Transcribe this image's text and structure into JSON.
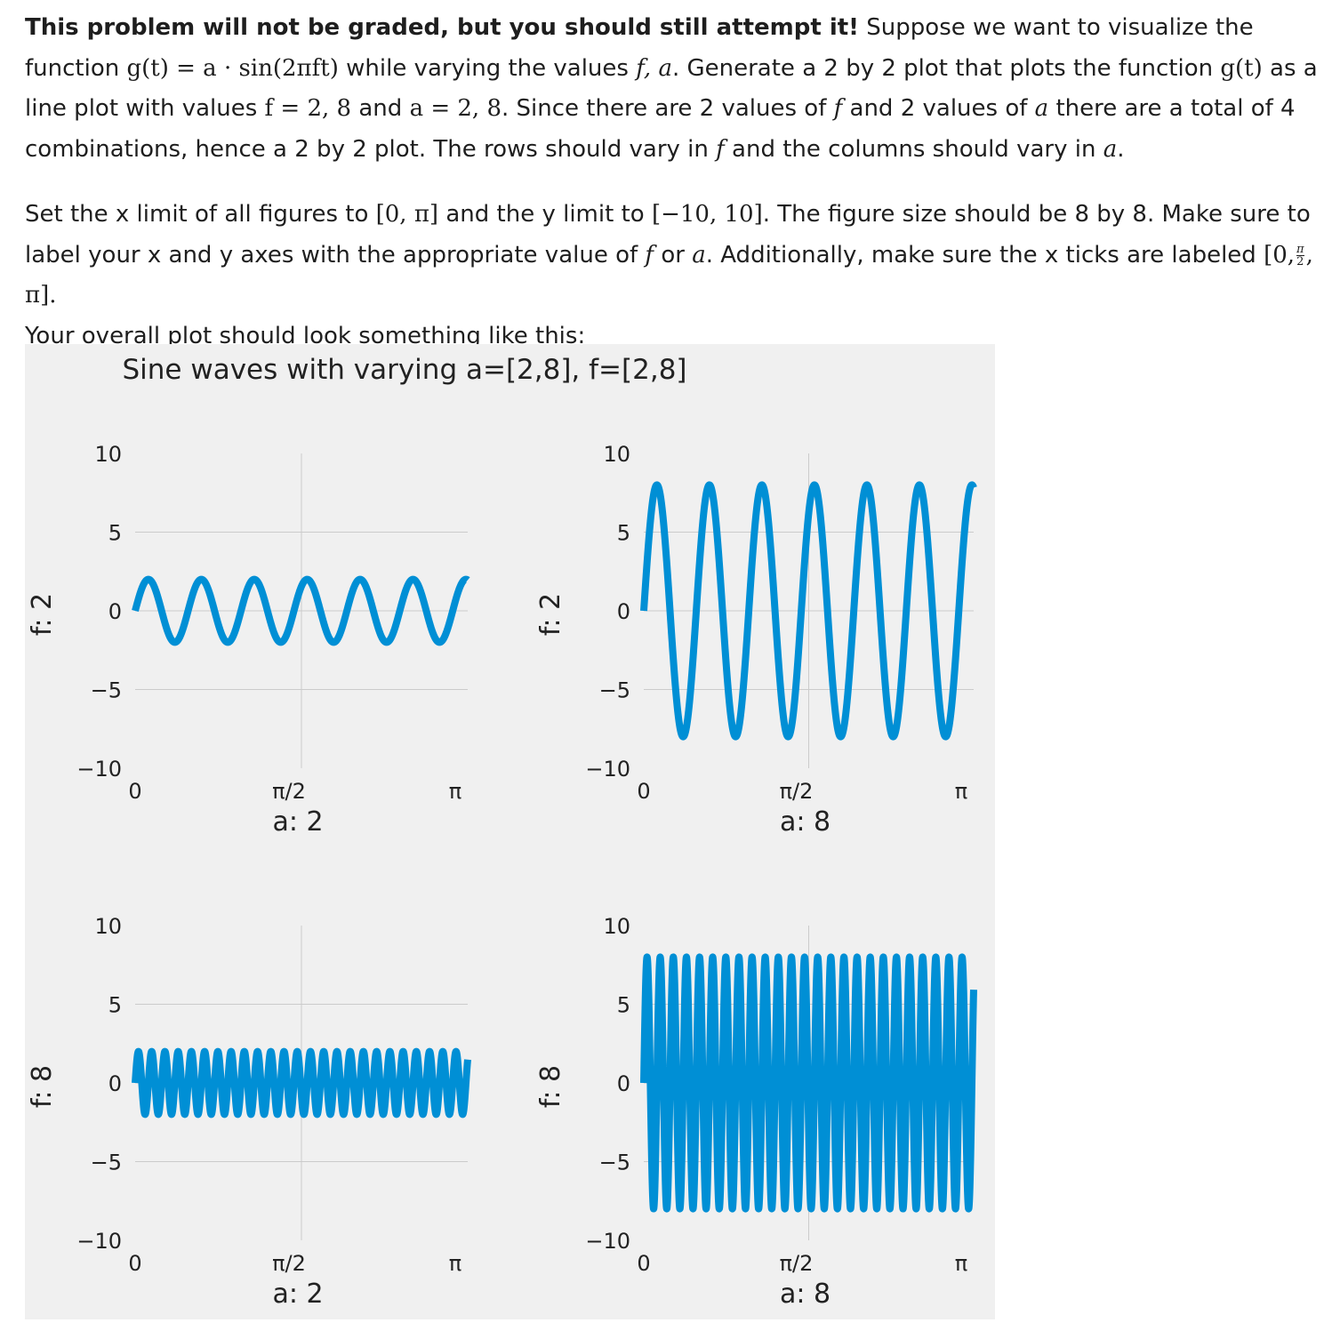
{
  "problem": {
    "bold_lead": "This problem will not be graded, but you should still attempt it!",
    "s1a": "Suppose we want to visualize the function",
    "func": "g(t) = a · sin(2πft)",
    "s1b": "while varying the values",
    "vars": "f, a",
    "s1c": ". Generate a 2 by 2 plot that plots the function",
    "g_t": "g(t)",
    "s1d": "as a line plot with values",
    "f_vals": "f = 2, 8",
    "and1": "and",
    "a_vals": "a = 2, 8",
    "s1e": ". Since there are 2 values of",
    "f1": "f",
    "s1f": "and 2 values of",
    "a1": "a",
    "s1g": "there are a total of 4 combinations, hence a 2 by 2 plot. The rows should vary in",
    "f2": "f",
    "s1h": "and the columns should vary in",
    "a2": "a",
    "s1i": ".",
    "s2a": "Set the x limit of all figures to",
    "xlim_text": "[0, π]",
    "s2b": "and the y limit to",
    "ylim_text": "[−10, 10]",
    "s2c": ". The figure size should be 8 by 8. Make sure to label your x and y axes with the appropriate value of",
    "f3": "f",
    "or": "or",
    "a3": "a",
    "s2d": ". Additionally, make sure the x ticks are labeled",
    "tick_open": "[0,",
    "frac_num": "π",
    "frac_den": "2",
    "tick_close": ", π].",
    "s2e": "Your overall plot should look something like this:"
  },
  "chart_data": {
    "type": "line",
    "title": "Sine waves with varying a=[2,8], f=[2,8]",
    "function": "g(t) = a * sin(2*pi*f*t)",
    "xlim": [
      0,
      3.14159
    ],
    "ylim": [
      -10,
      10
    ],
    "xticks": [
      0,
      1.5708,
      3.14159
    ],
    "xtick_labels": [
      "0",
      "π/2",
      "π"
    ],
    "yticks": [
      -10,
      -5,
      0,
      5,
      10
    ],
    "ytick_labels": [
      "−10",
      "−5",
      "0",
      "5",
      "10"
    ],
    "grid": true,
    "line_color": "#008fd5",
    "background_color": "#f0f0f0",
    "subplots": [
      {
        "f": 2,
        "a": 2,
        "xlabel": "a: 2",
        "ylabel": "f: 2"
      },
      {
        "f": 2,
        "a": 8,
        "xlabel": "a: 8",
        "ylabel": "f: 2"
      },
      {
        "f": 8,
        "a": 2,
        "xlabel": "a: 2",
        "ylabel": "f: 8"
      },
      {
        "f": 8,
        "a": 8,
        "xlabel": "a: 8",
        "ylabel": "f: 8"
      }
    ]
  }
}
